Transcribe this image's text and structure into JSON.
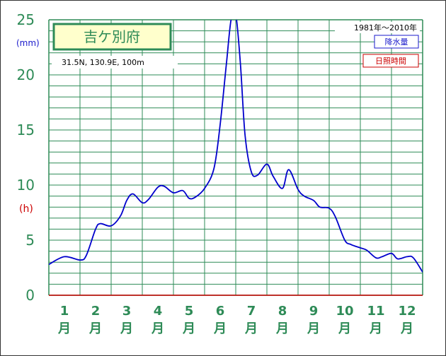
{
  "station": {
    "name": "吉ケ別府",
    "coords": "31.5N,  130.9E,  100m",
    "period": "1981年〜2010年"
  },
  "legend": {
    "precip": "降水量",
    "sunshine": "日照時間"
  },
  "axis": {
    "unit_mm": "(mm)",
    "unit_h": "(h)",
    "month_suffix": "月"
  },
  "colors": {
    "grid": "#2e8b57",
    "axis_text": "#2e8b57",
    "precip_line": "#0000cc",
    "sunshine_label": "#cc0000",
    "title_box_bg": "#ffffcc"
  },
  "chart_data": {
    "type": "line",
    "title": "吉ケ別府",
    "xlabel": "",
    "ylabel": "(mm)",
    "ylabel_secondary": "(h)",
    "ylim": [
      0,
      25
    ],
    "yticks": [
      0,
      5,
      10,
      15,
      20,
      25
    ],
    "categories": [
      "1",
      "2",
      "3",
      "4",
      "5",
      "6",
      "7",
      "8",
      "9",
      "10",
      "11",
      "12"
    ],
    "series": [
      {
        "name": "降水量",
        "color": "#0000cc",
        "x": [
          0.0,
          0.5,
          1.0,
          1.2,
          1.5,
          1.65,
          2.0,
          2.3,
          2.5,
          2.7,
          3.0,
          3.2,
          3.5,
          3.7,
          4.0,
          4.3,
          4.5,
          4.7,
          5.0,
          5.3,
          5.5,
          5.7,
          5.85,
          6.0,
          6.15,
          6.3,
          6.5,
          6.7,
          7.0,
          7.2,
          7.5,
          7.7,
          8.0,
          8.2,
          8.5,
          8.7,
          9.0,
          9.2,
          9.5,
          9.7,
          10.0,
          10.2,
          10.5,
          10.7,
          11.0,
          11.2,
          11.5,
          11.7,
          12.0
        ],
        "values": [
          2.8,
          3.5,
          3.2,
          3.6,
          6.0,
          6.5,
          6.3,
          7.2,
          8.6,
          9.2,
          8.4,
          8.7,
          9.8,
          9.9,
          9.3,
          9.5,
          8.8,
          8.9,
          9.7,
          11.5,
          15.5,
          21.0,
          25.0,
          25.5,
          21.0,
          14.5,
          11.2,
          10.9,
          11.9,
          10.8,
          9.7,
          11.4,
          9.6,
          9.0,
          8.6,
          8.0,
          7.9,
          7.1,
          5.0,
          4.6,
          4.3,
          4.1,
          3.4,
          3.5,
          3.8,
          3.3,
          3.5,
          3.4,
          2.1
        ]
      }
    ],
    "grid": true
  }
}
